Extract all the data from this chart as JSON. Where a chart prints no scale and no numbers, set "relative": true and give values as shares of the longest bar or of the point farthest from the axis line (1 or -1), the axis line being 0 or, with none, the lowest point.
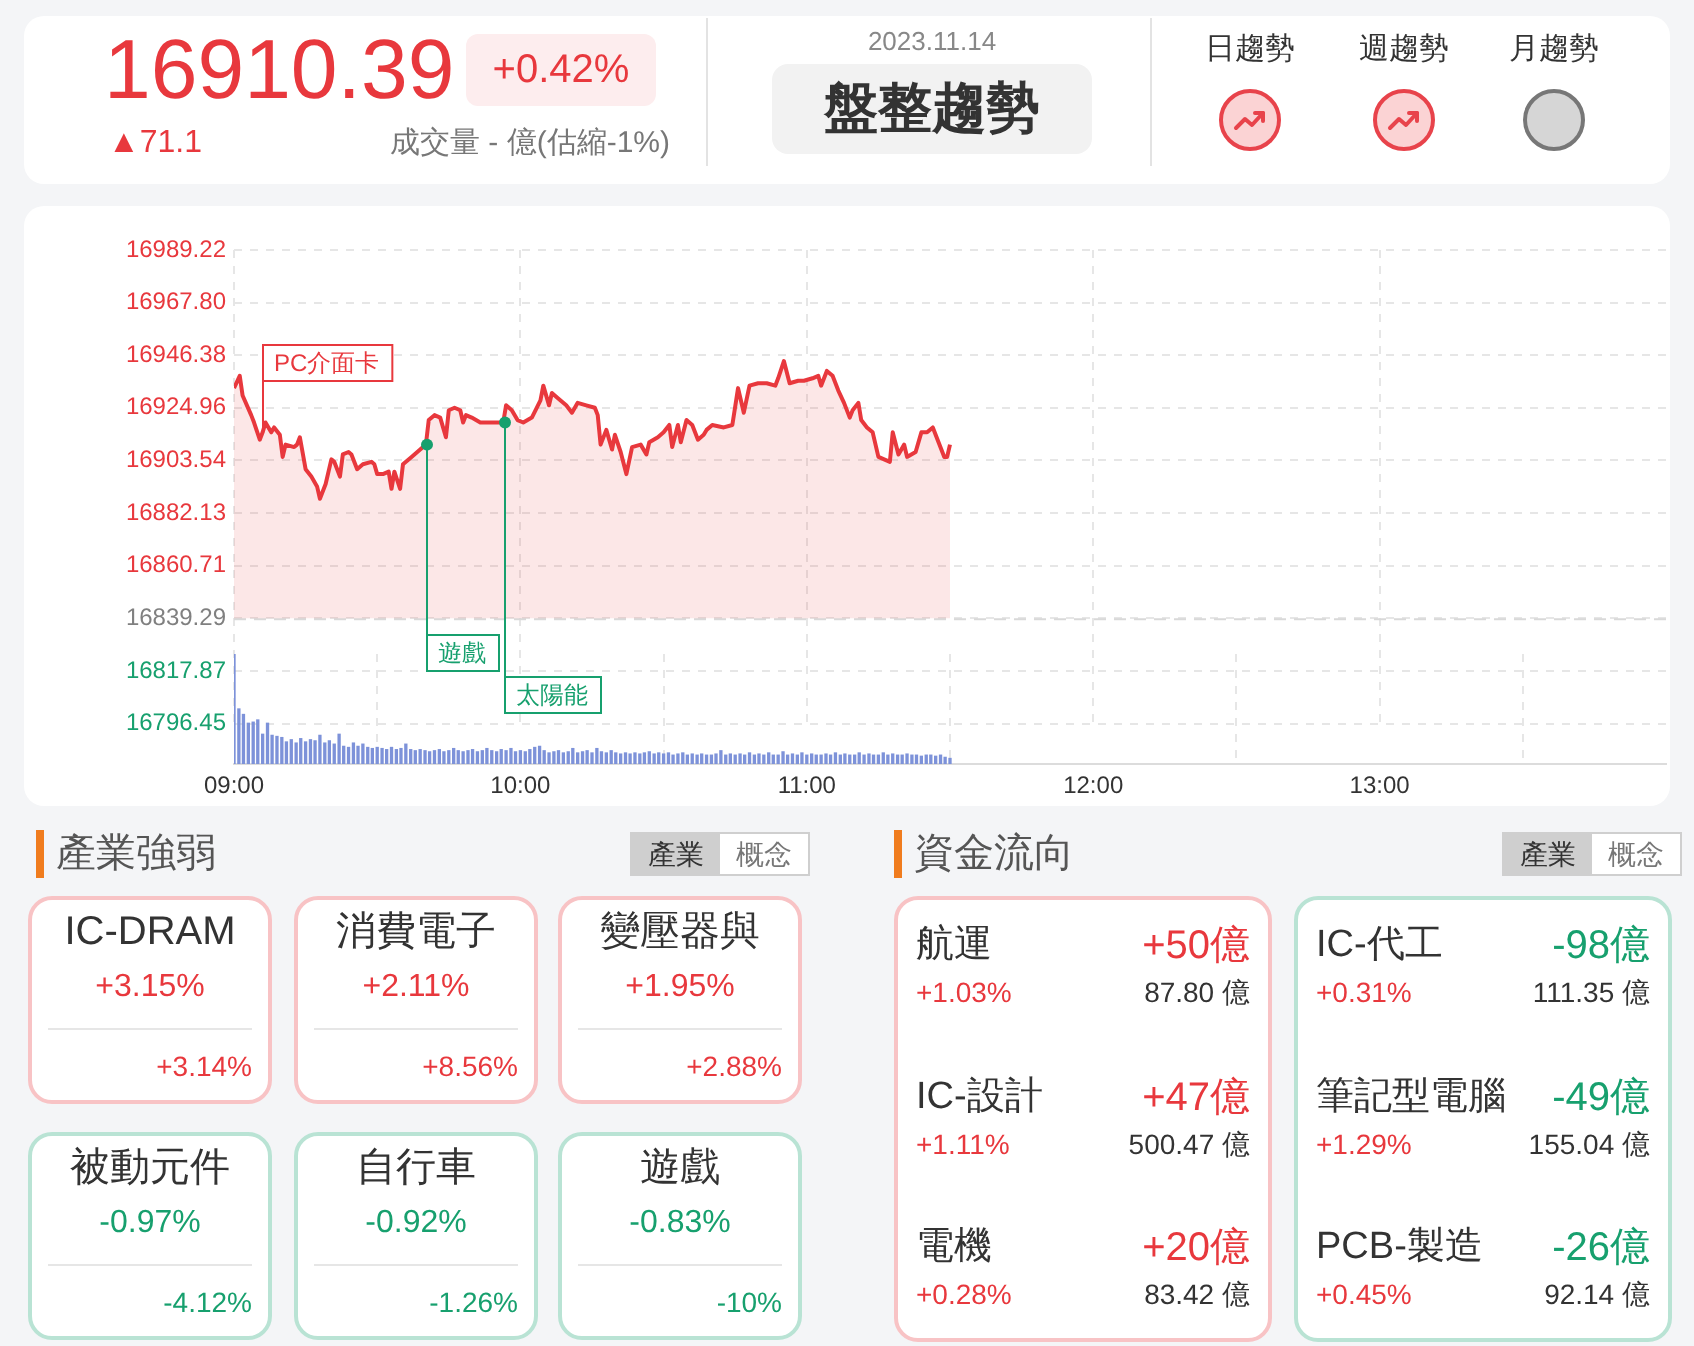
{
  "chart_data": [
    {
      "type": "other",
      "annotations": [
        "16910.39",
        "+0.42%",
        "▲71.1",
        "成交量 - 億(估縮-1%)",
        "2023.11.14",
        "盤整趨勢",
        "日趨勢",
        "週趨勢",
        "月趨勢"
      ],
      "colors": [
        "#e8383d",
        "#e8383d",
        "#e8383d",
        "#777777",
        "#888888",
        "#333333",
        "#333333",
        "#333333",
        "#333333"
      ]
    },
    {
      "type": "area",
      "color": "#e8383d",
      "marker": "none",
      "grid": true,
      "tick_labels": "y",
      "xlim": [
        9,
        14
      ],
      "xticks": [
        {
          "value": 9,
          "label": null
        },
        {
          "value": 10,
          "label": null
        },
        {
          "value": 11,
          "label": null
        },
        {
          "value": 12,
          "label": null
        },
        {
          "value": 13,
          "label": null
        }
      ],
      "ylim": [
        16796.45,
        16989.22
      ],
      "yticks": [
        16796.45,
        16817.87,
        16839.29,
        16860.71,
        16882.13,
        16903.54,
        16924.96,
        16946.38,
        {
          "value": 16967.8,
          "label": "16967.80"
        },
        16989.22
      ],
      "ref_lines": [
        {
          "axis": "y",
          "value": 16839.29
        }
      ],
      "annotations": [
        {
          "text": "PC介面卡",
          "x": 9.1,
          "y": 16915
        },
        {
          "text": "遊戲",
          "x": 9.67,
          "y": 16910
        },
        {
          "text": "太陽能",
          "x": 9.94,
          "y": 16919
        }
      ],
      "x": [
        9.0,
        9.02,
        9.03,
        9.06,
        9.07,
        9.09,
        9.1,
        9.11,
        9.13,
        9.14,
        9.16,
        9.17,
        9.18,
        9.21,
        9.22,
        9.23,
        9.25,
        9.27,
        9.29,
        9.3,
        9.32,
        9.34,
        9.35,
        9.37,
        9.38,
        9.4,
        9.41,
        9.43,
        9.45,
        9.48,
        9.49,
        9.5,
        9.52,
        9.54,
        9.55,
        9.56,
        9.58,
        9.59,
        9.62,
        9.65,
        9.67,
        9.68,
        9.7,
        9.72,
        9.74,
        9.75,
        9.77,
        9.79,
        9.8,
        9.81,
        9.83,
        9.86,
        9.88,
        9.91,
        9.94,
        9.95,
        9.97,
        9.99,
        10.01,
        10.04,
        10.07,
        10.08,
        10.1,
        10.11,
        10.13,
        10.16,
        10.18,
        10.2,
        10.23,
        10.26,
        10.27,
        10.28,
        10.3,
        10.32,
        10.33,
        10.35,
        10.37,
        10.39,
        10.42,
        10.44,
        10.45,
        10.48,
        10.5,
        10.52,
        10.53,
        10.55,
        10.56,
        10.58,
        10.6,
        10.62,
        10.64,
        10.65,
        10.67,
        10.71,
        10.74,
        10.76,
        10.78,
        10.8,
        10.83,
        10.86,
        10.89,
        10.9,
        10.92,
        10.94,
        10.97,
        10.99,
        11.02,
        11.04,
        11.05,
        11.07,
        11.09,
        11.11,
        11.13,
        11.15,
        11.16,
        11.18,
        11.19,
        11.21,
        11.23,
        11.25,
        11.27,
        11.29,
        11.3,
        11.32,
        11.34,
        11.35,
        11.38,
        11.4,
        11.42,
        11.44,
        11.46,
        11.48,
        11.49,
        11.5
      ],
      "values": [
        16933,
        16938,
        16930,
        16922,
        16919,
        16912,
        16915,
        16919,
        16915,
        16917,
        16914,
        16905,
        16910,
        16909,
        16910,
        16913,
        16900,
        16897,
        16893,
        16888,
        16894,
        16904,
        16903,
        16897,
        16906,
        16907,
        16906,
        16900,
        16902,
        16903,
        16902,
        16898,
        16898,
        16899,
        16892,
        16899,
        16892,
        16902,
        16905,
        16908,
        16910,
        16920,
        16922,
        16921,
        16913,
        16924,
        16925,
        16924,
        16919,
        16922,
        16921,
        16919,
        16919,
        16919,
        16919,
        16926,
        16924,
        16920,
        16919,
        16921,
        16928,
        16934,
        16926,
        16931,
        16929,
        16926,
        16923,
        16927,
        16926,
        16925,
        16922,
        16910,
        16916,
        16908,
        16914,
        16907,
        16898,
        16909,
        16910,
        16906,
        16911,
        16913,
        16915,
        16918,
        16909,
        16918,
        16911,
        16920,
        16918,
        16912,
        16914,
        16916,
        16918,
        16917,
        16918,
        16933,
        16923,
        16934,
        16935,
        16935,
        16934,
        16937,
        16944,
        16935,
        16936,
        16936,
        16937,
        16938,
        16934,
        16940,
        16938,
        16932,
        16927,
        16921,
        16924,
        16927,
        16920,
        16917,
        16915,
        16905,
        16904,
        16903,
        16915,
        16906,
        16910,
        16905,
        16907,
        16915,
        16915,
        16917,
        16911,
        16905,
        16905,
        16910
      ]
    },
    {
      "type": "bar",
      "relative": true,
      "color": "#7d92d9",
      "grid": "x",
      "tick_labels": "x",
      "xlim": [
        9,
        14
      ],
      "xticks": [
        {
          "value": 9,
          "label": "09:00"
        },
        {
          "value": 10,
          "label": "10:00"
        },
        {
          "value": 11,
          "label": "11:00"
        },
        {
          "value": 12,
          "label": "12:00"
        },
        {
          "value": 13,
          "label": "13:00"
        }
      ],
      "x": [
        9,
        9.017,
        9.033,
        9.05,
        9.067,
        9.083,
        9.1,
        9.117,
        9.133,
        9.15,
        9.167,
        9.183,
        9.2,
        9.217,
        9.233,
        9.25,
        9.267,
        9.283,
        9.3,
        9.317,
        9.333,
        9.35,
        9.367,
        9.383,
        9.4,
        9.417,
        9.433,
        9.45,
        9.467,
        9.483,
        9.5,
        9.517,
        9.533,
        9.55,
        9.567,
        9.583,
        9.6,
        9.617,
        9.633,
        9.65,
        9.667,
        9.683,
        9.7,
        9.717,
        9.733,
        9.75,
        9.767,
        9.783,
        9.8,
        9.817,
        9.833,
        9.85,
        9.867,
        9.883,
        9.9,
        9.917,
        9.933,
        9.95,
        9.967,
        9.983,
        10,
        10.017,
        10.033,
        10.05,
        10.067,
        10.083,
        10.1,
        10.117,
        10.133,
        10.15,
        10.167,
        10.183,
        10.2,
        10.217,
        10.233,
        10.25,
        10.267,
        10.283,
        10.3,
        10.317,
        10.333,
        10.35,
        10.367,
        10.383,
        10.4,
        10.417,
        10.433,
        10.45,
        10.467,
        10.483,
        10.5,
        10.517,
        10.533,
        10.55,
        10.567,
        10.583,
        10.6,
        10.617,
        10.633,
        10.65,
        10.667,
        10.683,
        10.7,
        10.717,
        10.733,
        10.75,
        10.767,
        10.783,
        10.8,
        10.817,
        10.833,
        10.85,
        10.867,
        10.883,
        10.9,
        10.917,
        10.933,
        10.95,
        10.967,
        10.983,
        11,
        11.017,
        11.033,
        11.05,
        11.067,
        11.083,
        11.1,
        11.117,
        11.133,
        11.15,
        11.167,
        11.183,
        11.2,
        11.217,
        11.233,
        11.25,
        11.267,
        11.283,
        11.3,
        11.317,
        11.333,
        11.35,
        11.367,
        11.383,
        11.4,
        11.417,
        11.433,
        11.45,
        11.467,
        11.483,
        11.5
      ],
      "values": [
        1.0,
        0.5,
        0.45,
        0.37,
        0.38,
        0.4,
        0.27,
        0.37,
        0.26,
        0.25,
        0.24,
        0.2,
        0.22,
        0.19,
        0.23,
        0.2,
        0.22,
        0.21,
        0.26,
        0.19,
        0.21,
        0.18,
        0.27,
        0.16,
        0.15,
        0.19,
        0.16,
        0.18,
        0.15,
        0.14,
        0.15,
        0.14,
        0.13,
        0.15,
        0.13,
        0.14,
        0.18,
        0.13,
        0.12,
        0.13,
        0.12,
        0.11,
        0.12,
        0.13,
        0.11,
        0.12,
        0.14,
        0.12,
        0.11,
        0.12,
        0.13,
        0.11,
        0.12,
        0.14,
        0.12,
        0.11,
        0.13,
        0.12,
        0.14,
        0.11,
        0.12,
        0.11,
        0.13,
        0.15,
        0.16,
        0.12,
        0.1,
        0.11,
        0.12,
        0.1,
        0.11,
        0.14,
        0.1,
        0.11,
        0.12,
        0.1,
        0.14,
        0.11,
        0.1,
        0.12,
        0.1,
        0.09,
        0.1,
        0.09,
        0.1,
        0.09,
        0.1,
        0.11,
        0.09,
        0.1,
        0.09,
        0.1,
        0.08,
        0.09,
        0.1,
        0.08,
        0.09,
        0.08,
        0.09,
        0.08,
        0.08,
        0.09,
        0.12,
        0.08,
        0.09,
        0.08,
        0.09,
        0.08,
        0.1,
        0.08,
        0.09,
        0.08,
        0.1,
        0.08,
        0.08,
        0.11,
        0.08,
        0.09,
        0.08,
        0.1,
        0.08,
        0.09,
        0.08,
        0.08,
        0.09,
        0.08,
        0.1,
        0.08,
        0.09,
        0.08,
        0.08,
        0.1,
        0.08,
        0.09,
        0.08,
        0.08,
        0.1,
        0.08,
        0.09,
        0.08,
        0.08,
        0.09,
        0.08,
        0.08,
        0.07,
        0.08,
        0.08,
        0.07,
        0.08,
        0.06,
        0.05
      ]
    },
    {
      "type": "other",
      "title": "產業強弱",
      "annotations": [
        "產業",
        "概念",
        "IC-DRAM",
        "+3.15%",
        "+3.14%",
        "消費電子",
        "+2.11%",
        "+8.56%",
        "變壓器與",
        "+1.95%",
        "+2.88%",
        "被動元件",
        "-0.97%",
        "-4.12%",
        "自行車",
        "-0.92%",
        "-1.26%",
        "遊戲",
        "-0.83%",
        "-10%"
      ],
      "colors": [
        "#333333",
        "#777777",
        "#333333",
        "#e8383d",
        "#e8383d",
        "#333333",
        "#e8383d",
        "#e8383d",
        "#333333",
        "#e8383d",
        "#e8383d",
        "#333333",
        "#17a06e",
        "#17a06e",
        "#333333",
        "#17a06e",
        "#17a06e",
        "#333333",
        "#17a06e",
        "#17a06e"
      ]
    },
    {
      "type": "other",
      "title": "資金流向",
      "annotations": [
        "產業",
        "概念",
        "航運",
        "+50億",
        "+1.03%",
        "87.80 億",
        "IC-設計",
        "+47億",
        "+1.11%",
        "500.47 億",
        "電機",
        "+20億",
        "+0.28%",
        "83.42 億",
        "IC-代工",
        "-98億",
        "+0.31%",
        "111.35 億",
        "筆記型電腦",
        "-49億",
        "+1.29%",
        "155.04 億",
        "PCB-製造",
        "-26億",
        "+0.45%",
        "92.14 億"
      ],
      "colors": [
        "#333333",
        "#777777",
        "#333333",
        "#e8383d",
        "#e8383d",
        "#333333",
        "#333333",
        "#e8383d",
        "#e8383d",
        "#333333",
        "#333333",
        "#e8383d",
        "#e8383d",
        "#333333",
        "#333333",
        "#17a06e",
        "#e8383d",
        "#333333",
        "#333333",
        "#17a06e",
        "#e8383d",
        "#333333",
        "#333333",
        "#17a06e",
        "#e8383d",
        "#333333"
      ]
    }
  ]
}
